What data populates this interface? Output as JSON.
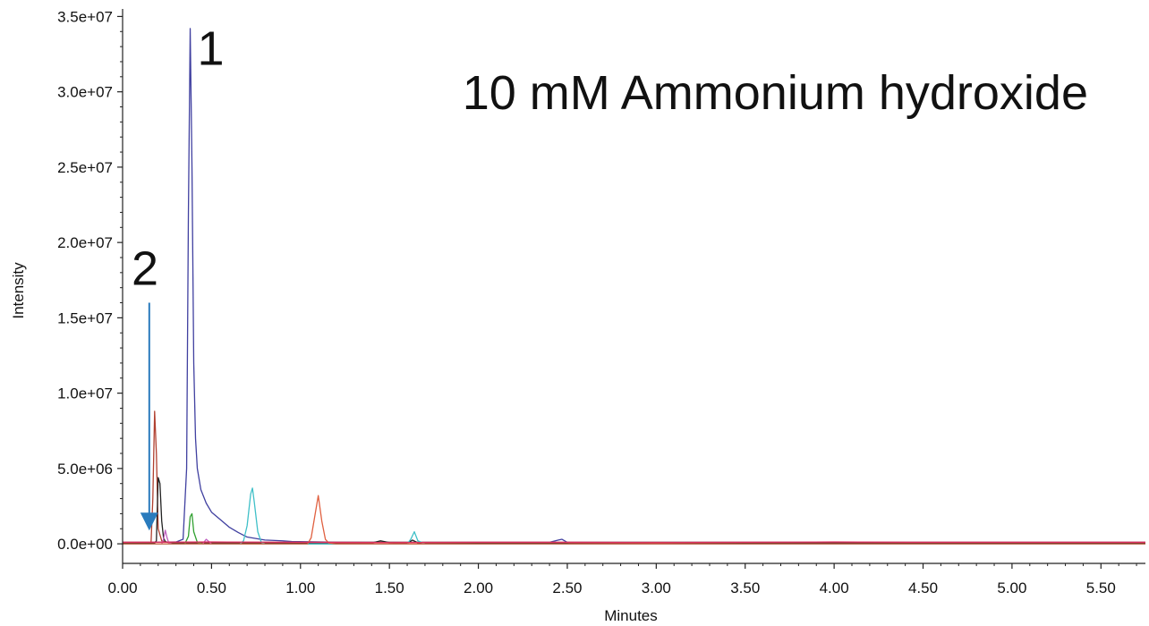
{
  "chart_data": {
    "type": "line",
    "title": "10 mM Ammonium hydroxide",
    "xlabel": "Minutes",
    "ylabel": "Intensity",
    "xlim": [
      0,
      5.75
    ],
    "ylim": [
      -1300000,
      35500000
    ],
    "x_ticks": [
      0,
      0.5,
      1,
      1.5,
      2,
      2.5,
      3,
      3.5,
      4,
      4.5,
      5,
      5.5
    ],
    "x_tick_labels": [
      "0.00",
      "0.50",
      "1.00",
      "1.50",
      "2.00",
      "2.50",
      "3.00",
      "3.50",
      "4.00",
      "4.50",
      "5.00",
      "5.50"
    ],
    "y_ticks": [
      0,
      5000000,
      10000000,
      15000000,
      20000000,
      25000000,
      30000000,
      35000000
    ],
    "y_tick_labels": [
      "0.0e+00",
      "5.0e+06",
      "1.0e+07",
      "1.5e+07",
      "2.0e+07",
      "2.5e+07",
      "3.0e+07",
      "3.5e+07"
    ],
    "grid": false,
    "legend": "none",
    "series": [
      {
        "color": "#4040a0",
        "x": [
          0,
          0.15,
          0.3,
          0.34,
          0.36,
          0.37,
          0.38,
          0.39,
          0.4,
          0.41,
          0.42,
          0.44,
          0.47,
          0.5,
          0.55,
          0.6,
          0.65,
          0.7,
          0.8,
          0.9,
          0.95,
          1.2,
          1.6,
          2.0,
          2.4,
          2.45,
          2.47,
          2.5,
          3.0,
          4.0,
          5.0,
          5.75
        ],
        "y": [
          100000,
          100000,
          120000,
          300000,
          5000000,
          22000000,
          34200000,
          25000000,
          12000000,
          7000000,
          5000000,
          3600000,
          2700000,
          2100000,
          1600000,
          1100000,
          750000,
          450000,
          250000,
          200000,
          150000,
          110000,
          100000,
          100000,
          100000,
          250000,
          300000,
          100000,
          100000,
          100000,
          100000,
          100000
        ]
      },
      {
        "color": "#b04030",
        "x": [
          0,
          0.16,
          0.17,
          0.18,
          0.19,
          0.2,
          0.22,
          0.25,
          0.3,
          0.6,
          1.0,
          1.5,
          2.0,
          3.0,
          4.0,
          5.0,
          5.75
        ],
        "y": [
          100000,
          100000,
          3000000,
          8800000,
          6000000,
          1000000,
          200000,
          100000,
          100000,
          100000,
          100000,
          100000,
          100000,
          100000,
          100000,
          100000,
          100000
        ]
      },
      {
        "color": "#222222",
        "x": [
          0,
          0.18,
          0.19,
          0.2,
          0.21,
          0.22,
          0.23,
          0.24,
          0.26,
          0.3,
          0.6,
          1.0,
          1.4,
          1.45,
          1.5,
          1.6,
          1.63,
          1.66,
          1.7,
          2.0,
          3.0,
          4.0,
          5.0,
          5.75
        ],
        "y": [
          50000,
          50000,
          200000,
          4400000,
          4000000,
          1500000,
          400000,
          150000,
          80000,
          50000,
          50000,
          50000,
          50000,
          200000,
          80000,
          50000,
          250000,
          60000,
          50000,
          50000,
          50000,
          50000,
          50000,
          50000
        ]
      },
      {
        "color": "#c060c0",
        "x": [
          0,
          0.22,
          0.23,
          0.24,
          0.25,
          0.26,
          0.28,
          0.4,
          0.45,
          0.47,
          0.5,
          1.0,
          2.0,
          3.0,
          4.0,
          5.0,
          5.75
        ],
        "y": [
          0,
          0,
          300000,
          900000,
          400000,
          50000,
          0,
          0,
          0,
          300000,
          0,
          0,
          0,
          0,
          0,
          0,
          0
        ]
      },
      {
        "color": "#30a030",
        "x": [
          0,
          0.35,
          0.37,
          0.38,
          0.39,
          0.4,
          0.42,
          0.45,
          1.0,
          2.0,
          3.0,
          4.0,
          5.0,
          5.75
        ],
        "y": [
          0,
          0,
          500000,
          1800000,
          2000000,
          800000,
          100000,
          0,
          0,
          0,
          0,
          0,
          0,
          0
        ]
      },
      {
        "color": "#40c0c8",
        "x": [
          0,
          0.66,
          0.68,
          0.7,
          0.72,
          0.73,
          0.74,
          0.76,
          0.78,
          0.8,
          1.0,
          1.6,
          1.62,
          1.64,
          1.66,
          1.7,
          2.0,
          3.0,
          4.0,
          5.0,
          5.75
        ],
        "y": [
          0,
          0,
          200000,
          1200000,
          3300000,
          3700000,
          2800000,
          800000,
          100000,
          0,
          0,
          0,
          300000,
          800000,
          200000,
          0,
          0,
          0,
          0,
          0,
          0
        ]
      },
      {
        "color": "#e06040",
        "x": [
          0,
          1.04,
          1.06,
          1.08,
          1.1,
          1.12,
          1.14,
          1.16,
          1.2,
          2.0,
          3.0,
          4.0,
          5.0,
          5.75
        ],
        "y": [
          0,
          0,
          400000,
          1800000,
          3200000,
          1500000,
          300000,
          50000,
          0,
          0,
          0,
          0,
          0,
          0
        ]
      },
      {
        "color": "#e03060",
        "x": [
          0,
          0.5,
          1.0,
          1.5,
          2.0,
          2.5,
          3.0,
          3.5,
          4.0,
          4.5,
          5.0,
          5.5,
          5.75
        ],
        "y": [
          100000,
          120000,
          100000,
          80000,
          100000,
          100000,
          80000,
          100000,
          120000,
          100000,
          100000,
          100000,
          100000
        ]
      }
    ],
    "annotations": [
      {
        "text": "1",
        "x": 0.42,
        "y": 31800000
      },
      {
        "text": "2",
        "x": 0.05,
        "y": 17200000
      }
    ],
    "arrow": {
      "x": 0.15,
      "y_start": 16000000,
      "y_end": 1000000,
      "color": "#2a7bbd"
    }
  }
}
